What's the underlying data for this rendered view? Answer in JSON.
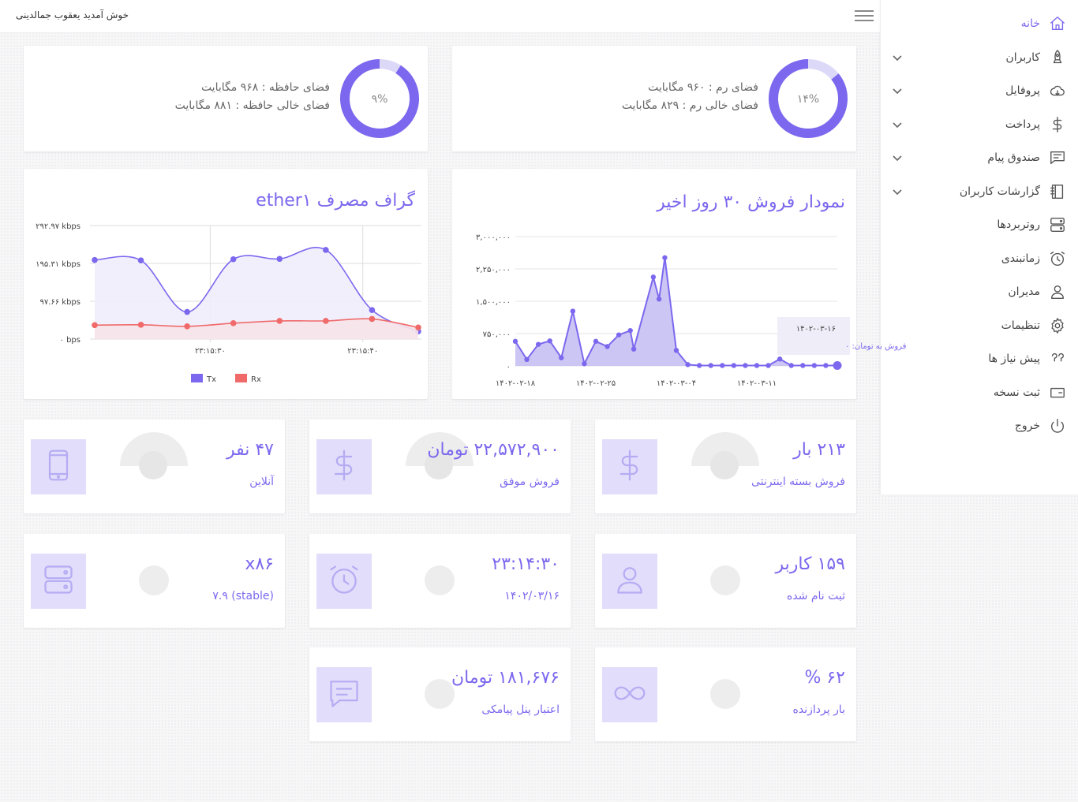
{
  "topbar": {
    "welcome": "خوش آمدید یعقوب جمالدینی"
  },
  "sidebar": {
    "items": [
      {
        "label": "خانه",
        "icon": "home-icon",
        "active": true,
        "chevron": false
      },
      {
        "label": "کاربران",
        "icon": "rocket-icon",
        "chevron": true
      },
      {
        "label": "پروفایل",
        "icon": "cloud-icon",
        "chevron": true
      },
      {
        "label": "پرداخت",
        "icon": "dollar-icon",
        "chevron": true
      },
      {
        "label": "صندوق پیام",
        "icon": "chat-icon",
        "chevron": true
      },
      {
        "label": "گزارشات کاربران",
        "icon": "notebook-icon",
        "chevron": true
      },
      {
        "label": "روتربردها",
        "icon": "server-icon",
        "chevron": false
      },
      {
        "label": "زمانبندی",
        "icon": "alarm-icon",
        "chevron": false
      },
      {
        "label": "مدیران",
        "icon": "user-icon",
        "chevron": false
      },
      {
        "label": "تنظیمات",
        "icon": "gear-icon",
        "chevron": false
      },
      {
        "label": "پیش نیاز ها",
        "icon": "quote-icon",
        "chevron": false
      },
      {
        "label": "ثبت نسخه",
        "icon": "wallet-icon",
        "chevron": false
      },
      {
        "label": "خروج",
        "icon": "power-icon",
        "chevron": false
      }
    ]
  },
  "storage": {
    "percent_label": "۹%",
    "fraction": 0.09,
    "total": "فضای حافظه : ۹۶۸ مگابایت",
    "free": "فضای خالی حافظه : ۸۸۱ مگابایت"
  },
  "ram": {
    "percent_label": "۱۴%",
    "fraction": 0.14,
    "total": "فضای رم : ۹۶۰ مگابایت",
    "free": "فضای خالی رم : ۸۲۹ مگابایت"
  },
  "colors": {
    "accent": "#7b68ee",
    "rx": "#f06a6a",
    "tx_fill": "#efedfc",
    "rx_fill": "#f7e3ea"
  },
  "chart_data": [
    {
      "type": "line",
      "title": "گراف مصرف ether۱",
      "y_ticks": [
        "۲۹۲.۹۷ kbps",
        "۱۹۵.۳۱ kbps",
        "۹۷.۶۶ kbps",
        "۰ bps"
      ],
      "y_tick_values": [
        292.97,
        195.31,
        97.66,
        0
      ],
      "ylim": [
        0,
        292.97
      ],
      "x_ticks": [
        "۲۳:۱۵:۳۰",
        "۲۳:۱۵:۴۰"
      ],
      "x_tick_positions": [
        2.5,
        5.8
      ],
      "series": [
        {
          "name": "Tx",
          "x": [
            0,
            1,
            2,
            3,
            4,
            5,
            6,
            7
          ],
          "values": [
            204,
            203,
            70,
            206,
            207,
            230,
            75,
            20
          ]
        },
        {
          "name": "Rx",
          "x": [
            0,
            1,
            2,
            3,
            4,
            5,
            6,
            7
          ],
          "values": [
            36,
            37,
            33,
            41,
            47,
            47,
            52,
            30
          ]
        }
      ],
      "legend": "bottom"
    },
    {
      "type": "area",
      "title": "نمودار فروش ۳۰ روز اخیر",
      "y_ticks": [
        "۳,۰۰۰,۰۰۰",
        "۲,۲۵۰,۰۰۰",
        "۱,۵۰۰,۰۰۰",
        "۷۵۰,۰۰۰",
        "۰"
      ],
      "y_tick_values": [
        3000000,
        2250000,
        1500000,
        750000,
        0
      ],
      "ylim": [
        0,
        3000000
      ],
      "x_ticks": [
        "۱۴۰۲-۰۲-۱۸",
        "۱۴۰۲-۰۲-۲۵",
        "۱۴۰۲-۰۳-۰۴",
        "۱۴۰۲-۰۳-۱۱"
      ],
      "x_tick_positions": [
        0,
        7,
        14,
        21
      ],
      "points": [
        [
          0,
          570000
        ],
        [
          1,
          150000
        ],
        [
          2,
          500000
        ],
        [
          3,
          580000
        ],
        [
          4,
          190000
        ],
        [
          5,
          1270000
        ],
        [
          6,
          50000
        ],
        [
          7,
          570000
        ],
        [
          8,
          450000
        ],
        [
          9,
          720000
        ],
        [
          10,
          820000
        ],
        [
          10.3,
          390000
        ],
        [
          12,
          2060000
        ],
        [
          12.5,
          1550000
        ],
        [
          13,
          2510000
        ],
        [
          14,
          360000
        ],
        [
          15,
          30000
        ],
        [
          16,
          10000
        ],
        [
          17,
          10000
        ],
        [
          18,
          10000
        ],
        [
          19,
          10000
        ],
        [
          20,
          10000
        ],
        [
          21,
          10000
        ],
        [
          22,
          10000
        ],
        [
          23,
          160000
        ],
        [
          24,
          10000
        ],
        [
          25,
          10000
        ],
        [
          26,
          10000
        ],
        [
          27,
          10000
        ],
        [
          28,
          10000
        ]
      ],
      "tooltip": {
        "date": "۱۴۰۲-۰۳-۱۶",
        "text": "فروش به تومان: ۰"
      }
    }
  ],
  "stats": [
    {
      "value": "۲۱۳ بار",
      "label": "فروش بسته اینترنتی",
      "icon": "dollar-icon",
      "dome": true
    },
    {
      "value": "۲۲,۵۷۲,۹۰۰ تومان",
      "label": "فروش موفق",
      "icon": "dollar-icon",
      "dome": true
    },
    {
      "value": "۴۷ نفر",
      "label": "آنلاین",
      "icon": "mobile-icon",
      "dome": true
    },
    {
      "value": "۱۵۹ کاربر",
      "label": "ثبت نام شده",
      "icon": "user-icon"
    },
    {
      "value": "۲۳:۱۴:۳۰",
      "label": "۱۴۰۲/۰۳/۱۶",
      "icon": "alarm-icon"
    },
    {
      "value": "x۸۶",
      "label": "(stable) ۷.۹",
      "icon": "server-icon"
    },
    {
      "value": "۶۲ %",
      "label": "بار پردازنده",
      "icon": "infinity-icon"
    },
    {
      "value": "۱۸۱,۶۷۶ تومان",
      "label": "اعتبار پنل پیامکی",
      "icon": "message-icon"
    }
  ]
}
